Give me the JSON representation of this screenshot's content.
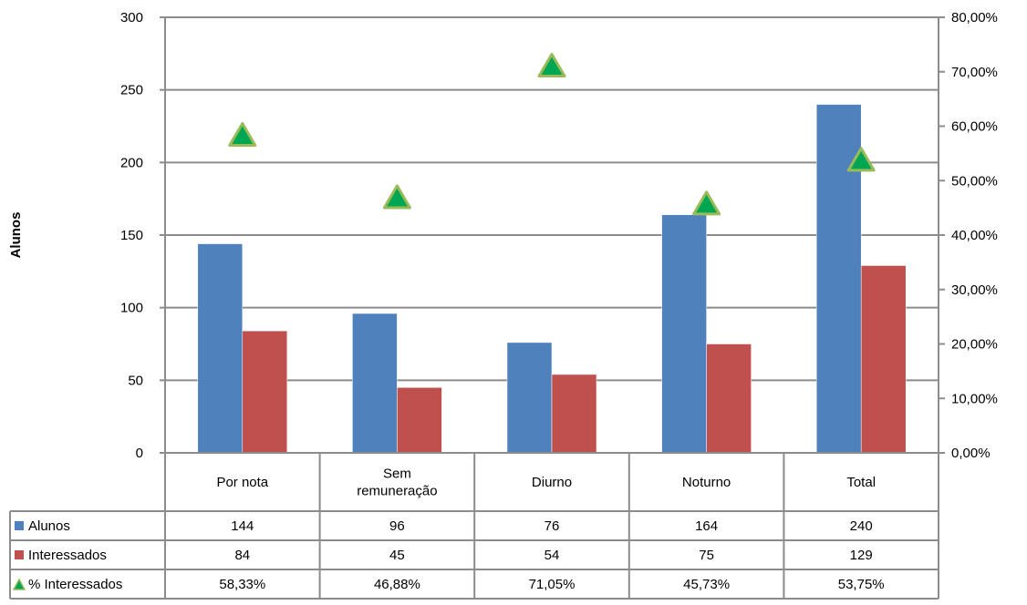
{
  "chart_data": {
    "type": "bar",
    "title": "",
    "xlabel": "",
    "ylabel": "Alunos",
    "y2label": "",
    "categories": [
      [
        "Por nota"
      ],
      [
        "Sem",
        "remuneração"
      ],
      [
        "Diurno"
      ],
      [
        "Noturno"
      ],
      [
        "Total"
      ]
    ],
    "ylim": [
      0,
      300
    ],
    "yticks": [
      "0",
      "50",
      "100",
      "150",
      "200",
      "250",
      "300"
    ],
    "y2lim": [
      0,
      80
    ],
    "y2ticks": [
      "0,00%",
      "10,00%",
      "20,00%",
      "30,00%",
      "40,00%",
      "50,00%",
      "60,00%",
      "70,00%",
      "80,00%"
    ],
    "grid": true,
    "series": [
      {
        "name": "Alunos",
        "kind": "bar",
        "axis": "left",
        "color": "#4F81BD",
        "values": [
          144,
          96,
          76,
          164,
          240
        ],
        "labels": [
          "144",
          "96",
          "76",
          "164",
          "240"
        ]
      },
      {
        "name": "Interessados",
        "kind": "bar",
        "axis": "left",
        "color": "#C0504D",
        "values": [
          84,
          45,
          54,
          75,
          129
        ],
        "labels": [
          "84",
          "45",
          "54",
          "75",
          "129"
        ]
      },
      {
        "name": "% Interessados",
        "kind": "marker",
        "marker": "triangle",
        "axis": "right",
        "color": "#00A651",
        "edge": "#9BBB59",
        "values": [
          58.33,
          46.88,
          71.05,
          45.73,
          53.75
        ],
        "labels": [
          "58,33%",
          "46,88%",
          "71,05%",
          "45,73%",
          "53,75%"
        ]
      }
    ],
    "data_table": true
  }
}
